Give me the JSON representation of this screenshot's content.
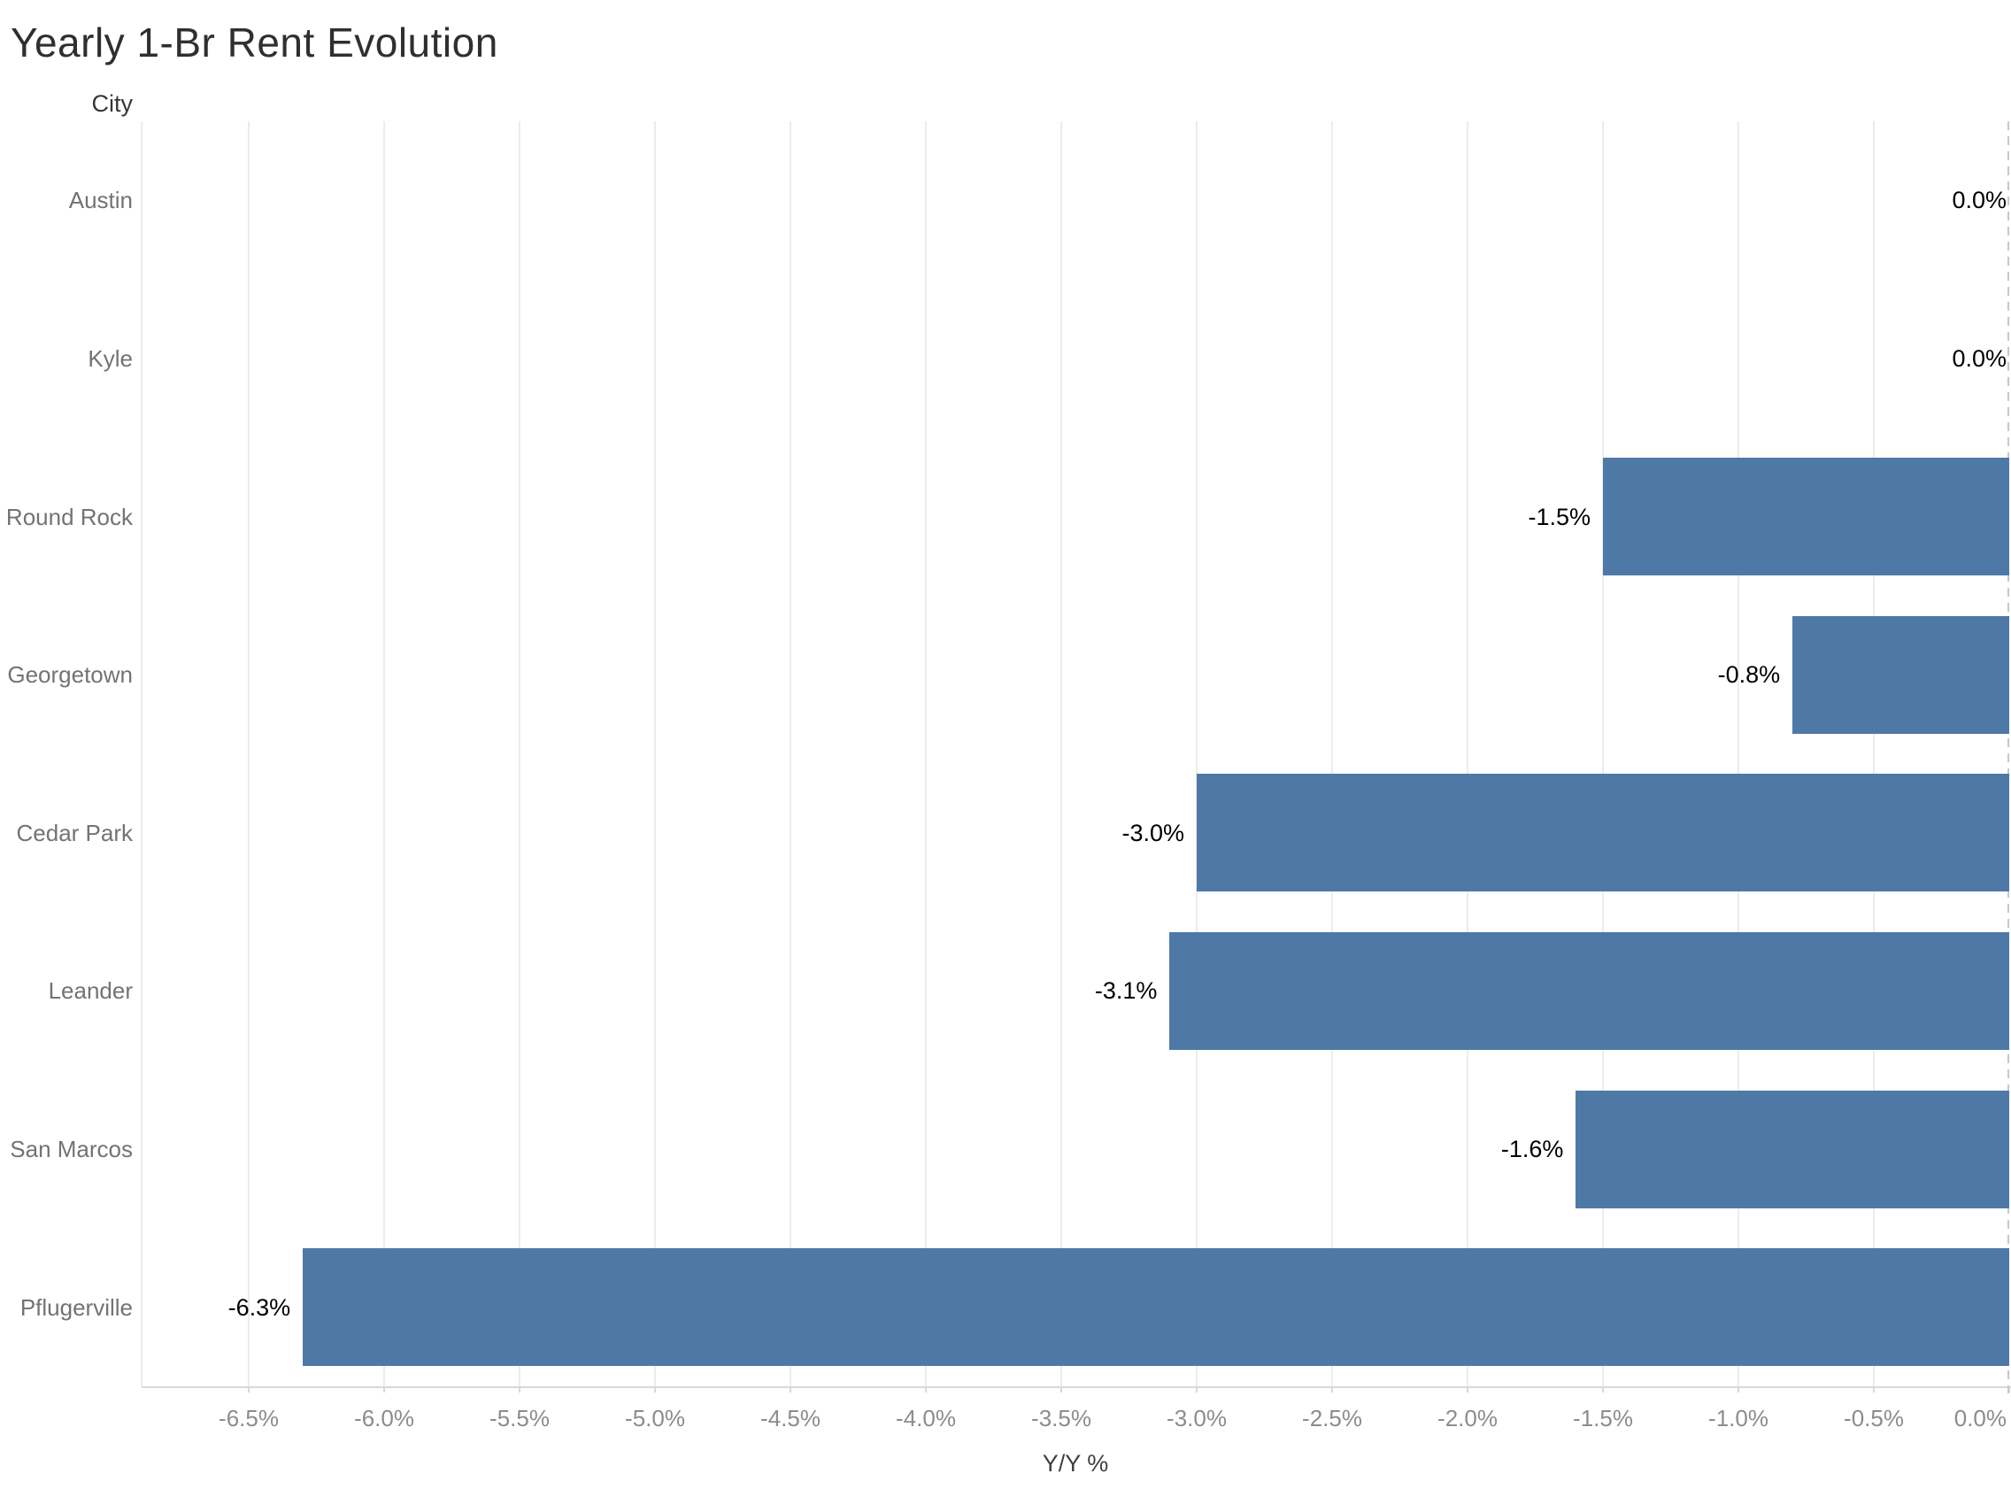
{
  "title": "Yearly 1-Br Rent Evolution",
  "row_header": "City",
  "axis": {
    "label": "Y/Y %",
    "tick_values": [
      -6.5,
      -6.0,
      -5.5,
      -5.0,
      -4.5,
      -4.0,
      -3.5,
      -3.0,
      -2.5,
      -2.0,
      -1.5,
      -1.0,
      -0.5,
      0.0
    ],
    "tick_labels": [
      "-6.5%",
      "-6.0%",
      "-5.5%",
      "-5.0%",
      "-4.5%",
      "-4.0%",
      "-3.5%",
      "-3.0%",
      "-2.5%",
      "-2.0%",
      "-1.5%",
      "-1.0%",
      "-0.5%",
      "0.0%"
    ]
  },
  "chart_data": {
    "type": "bar",
    "orientation": "horizontal",
    "title": "Yearly 1-Br Rent Evolution",
    "xlabel": "Y/Y %",
    "ylabel": "City",
    "categories": [
      "Austin",
      "Kyle",
      "Round Rock",
      "Georgetown",
      "Cedar Park",
      "Leander",
      "San Marcos",
      "Pflugerville"
    ],
    "values": [
      0.0,
      0.0,
      -1.5,
      -0.8,
      -3.0,
      -3.1,
      -1.6,
      -6.3
    ],
    "value_labels": [
      "0.0%",
      "0.0%",
      "-1.5%",
      "-0.8%",
      "-3.0%",
      "-3.1%",
      "-1.6%",
      "-6.3%"
    ],
    "xlim": [
      -6.9,
      0
    ],
    "grid": true,
    "zero_line_style": "dashed",
    "legend": "none",
    "bar_color": "#4e79a7"
  },
  "colors": {
    "bar": "#4e79a7",
    "gridline": "#ececec",
    "axis_line": "#d8d8d8",
    "zero_line": "#c8c8c8",
    "title_text": "#2f2f2f",
    "city_label_text": "#737373",
    "tick_label_text": "#8c8c8c",
    "value_label_text": "#000000"
  }
}
